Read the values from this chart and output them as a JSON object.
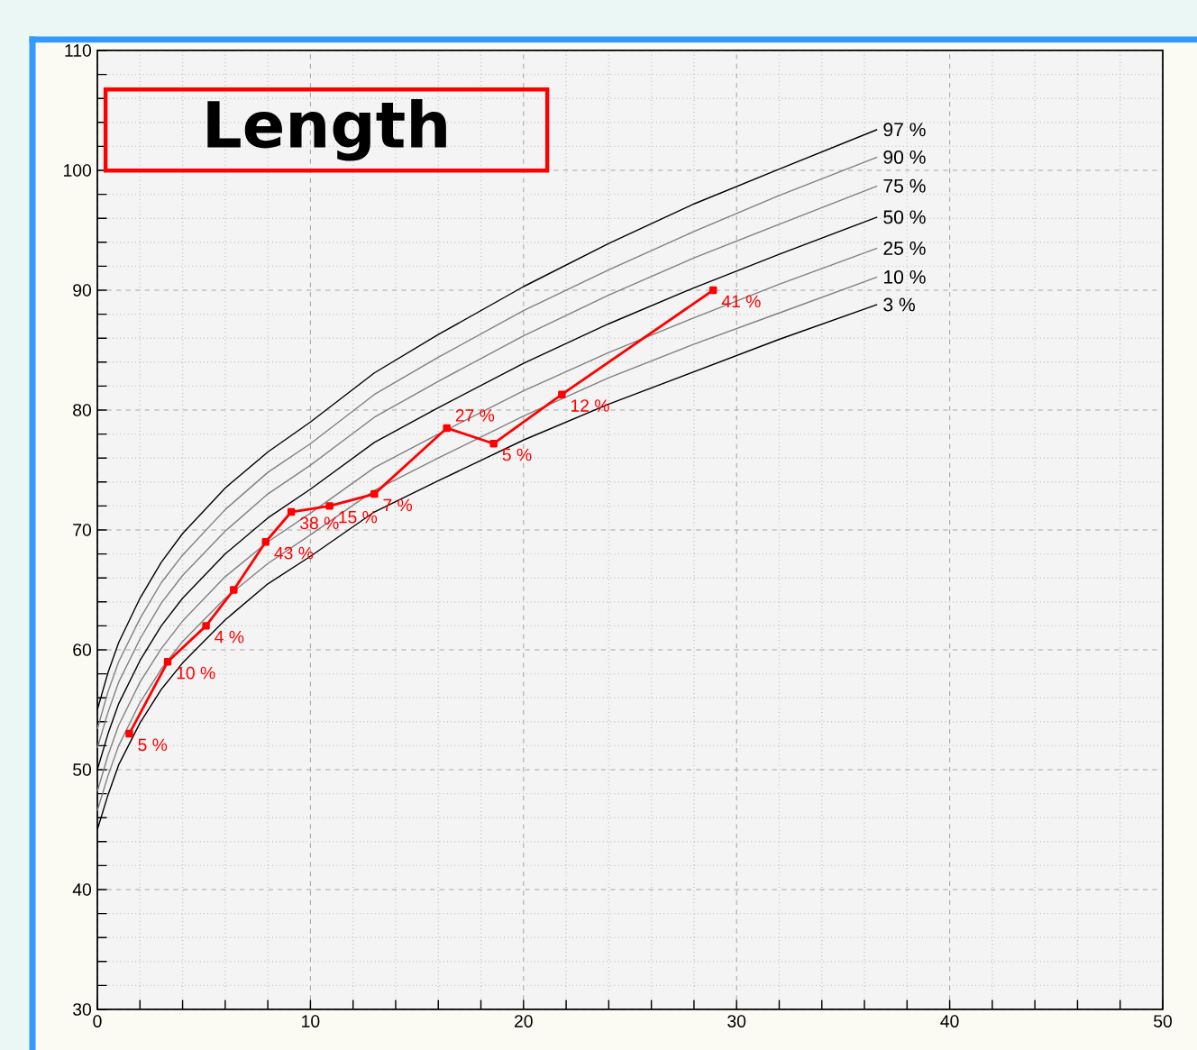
{
  "chart_data": {
    "type": "line",
    "title": "Length",
    "xlim": [
      0,
      50
    ],
    "ylim": [
      30,
      110
    ],
    "grid": true,
    "xticks": [
      0,
      {
        "value": 2,
        "label": null
      },
      {
        "value": 4,
        "label": null
      },
      {
        "value": 6,
        "label": null
      },
      {
        "value": 8,
        "label": null
      },
      10,
      {
        "value": 12,
        "label": null
      },
      {
        "value": 14,
        "label": null
      },
      {
        "value": 16,
        "label": null
      },
      {
        "value": 18,
        "label": null
      },
      20,
      {
        "value": 22,
        "label": null
      },
      {
        "value": 24,
        "label": null
      },
      {
        "value": 26,
        "label": null
      },
      {
        "value": 28,
        "label": null
      },
      30,
      {
        "value": 32,
        "label": null
      },
      {
        "value": 34,
        "label": null
      },
      {
        "value": 36,
        "label": null
      },
      {
        "value": 38,
        "label": null
      },
      40,
      {
        "value": 42,
        "label": null
      },
      {
        "value": 44,
        "label": null
      },
      {
        "value": 46,
        "label": null
      },
      {
        "value": 48,
        "label": null
      },
      50
    ],
    "yticks": [
      30,
      {
        "value": 32,
        "label": null
      },
      {
        "value": 34,
        "label": null
      },
      {
        "value": 36,
        "label": null
      },
      {
        "value": 38,
        "label": null
      },
      40,
      {
        "value": 42,
        "label": null
      },
      {
        "value": 44,
        "label": null
      },
      {
        "value": 46,
        "label": null
      },
      {
        "value": 48,
        "label": null
      },
      50,
      {
        "value": 52,
        "label": null
      },
      {
        "value": 54,
        "label": null
      },
      {
        "value": 56,
        "label": null
      },
      {
        "value": 58,
        "label": null
      },
      60,
      {
        "value": 62,
        "label": null
      },
      {
        "value": 64,
        "label": null
      },
      {
        "value": 66,
        "label": null
      },
      {
        "value": 68,
        "label": null
      },
      70,
      {
        "value": 72,
        "label": null
      },
      {
        "value": 74,
        "label": null
      },
      {
        "value": 76,
        "label": null
      },
      {
        "value": 78,
        "label": null
      },
      80,
      {
        "value": 82,
        "label": null
      },
      {
        "value": 84,
        "label": null
      },
      {
        "value": 86,
        "label": null
      },
      {
        "value": 88,
        "label": null
      },
      90,
      {
        "value": 92,
        "label": null
      },
      {
        "value": 94,
        "label": null
      },
      {
        "value": 96,
        "label": null
      },
      {
        "value": 98,
        "label": null
      },
      100,
      {
        "value": 102,
        "label": null
      },
      {
        "value": 104,
        "label": null
      },
      {
        "value": 106,
        "label": null
      },
      {
        "value": 108,
        "label": null
      },
      110
    ],
    "series": [
      {
        "name": "97 %",
        "color": "#000000",
        "marker": "none",
        "x": [
          0,
          0.5,
          1,
          2,
          3,
          4,
          6,
          8,
          10,
          13,
          16,
          20,
          24,
          28,
          32,
          36.6
        ],
        "values": [
          55,
          58.1,
          60.6,
          64.3,
          67.3,
          69.7,
          73.5,
          76.5,
          79,
          83.1,
          86.3,
          90.3,
          93.9,
          97.2,
          100.1,
          103.4
        ]
      },
      {
        "name": "90 %",
        "color": "#808080",
        "marker": "none",
        "x": [
          0,
          0.5,
          1,
          2,
          3,
          4,
          6,
          8,
          10,
          13,
          16,
          20,
          24,
          28,
          32,
          36.6
        ],
        "values": [
          53.4,
          56.5,
          59,
          62.6,
          65.6,
          67.9,
          71.7,
          74.8,
          77.2,
          81.3,
          84.4,
          88.3,
          91.7,
          94.9,
          97.9,
          101.1
        ]
      },
      {
        "name": "75 %",
        "color": "#808080",
        "marker": "none",
        "x": [
          0,
          0.5,
          1,
          2,
          3,
          4,
          6,
          8,
          10,
          13,
          16,
          20,
          24,
          28,
          32,
          36.6
        ],
        "values": [
          51.8,
          54.8,
          57.3,
          60.9,
          63.9,
          66.2,
          69.9,
          73,
          75.4,
          79.4,
          82.4,
          86.2,
          89.6,
          92.7,
          95.5,
          98.7
        ]
      },
      {
        "name": "50 %",
        "color": "#000000",
        "marker": "none",
        "x": [
          0,
          0.5,
          1,
          2,
          3,
          4,
          6,
          8,
          10,
          13,
          16,
          20,
          24,
          28,
          32,
          36.6
        ],
        "values": [
          50,
          53,
          55.5,
          59.1,
          62,
          64.3,
          68,
          71,
          73.4,
          77.3,
          80.2,
          83.9,
          87.2,
          90.2,
          93,
          96.1
        ]
      },
      {
        "name": "25 %",
        "color": "#808080",
        "marker": "none",
        "x": [
          0,
          0.5,
          1,
          2,
          3,
          4,
          6,
          8,
          10,
          13,
          16,
          20,
          24,
          28,
          32,
          36.6
        ],
        "values": [
          48.2,
          51.2,
          53.7,
          57.3,
          60.1,
          62.4,
          66.1,
          69,
          71.4,
          75.2,
          78,
          81.6,
          84.8,
          87.7,
          90.5,
          93.5
        ]
      },
      {
        "name": "10 %",
        "color": "#808080",
        "marker": "none",
        "x": [
          0,
          0.5,
          1,
          2,
          3,
          4,
          6,
          8,
          10,
          13,
          16,
          20,
          24,
          28,
          32,
          36.6
        ],
        "values": [
          46.6,
          49.5,
          52,
          55.6,
          58.4,
          60.7,
          64.3,
          67.2,
          69.6,
          73.3,
          76,
          79.5,
          82.7,
          85.5,
          88.1,
          91.1
        ]
      },
      {
        "name": "3 %",
        "color": "#000000",
        "marker": "none",
        "x": [
          0,
          0.5,
          1,
          2,
          3,
          4,
          6,
          8,
          10,
          13,
          16,
          20,
          24,
          28,
          32,
          36.6
        ],
        "values": [
          45,
          47.9,
          50.4,
          53.9,
          56.7,
          58.9,
          62.5,
          65.5,
          67.8,
          71.5,
          74.1,
          77.5,
          80.5,
          83.2,
          85.9,
          88.8
        ]
      },
      {
        "color": "#ff0000",
        "marker": "square",
        "x": [
          1.5,
          3.3,
          5.1,
          6.4,
          7.9,
          9.1,
          10.9,
          13,
          16.4,
          18.6,
          21.8,
          28.9
        ],
        "values": [
          53,
          59,
          62,
          65,
          69,
          71.5,
          72,
          73,
          78.5,
          77.2,
          81.3,
          90
        ]
      }
    ],
    "annotations": [
      {
        "text": "5 %",
        "x": 1.5,
        "y": 53
      },
      {
        "text": "10 %",
        "x": 3.3,
        "y": 59
      },
      {
        "text": "4 %",
        "x": 5.1,
        "y": 62
      },
      {
        "text": "43 %",
        "x": 7.9,
        "y": 69
      },
      {
        "text": "38 %",
        "x": 9.1,
        "y": 71.5
      },
      {
        "text": "15 %",
        "x": 10.9,
        "y": 72
      },
      {
        "text": "7 %",
        "x": 13,
        "y": 73
      },
      {
        "text": "27 %",
        "x": 16.4,
        "y": 78.5
      },
      {
        "text": "5 %",
        "x": 18.6,
        "y": 77.2
      },
      {
        "text": "12 %",
        "x": 21.8,
        "y": 81.3
      },
      {
        "text": "41 %",
        "x": 28.9,
        "y": 90
      }
    ]
  }
}
